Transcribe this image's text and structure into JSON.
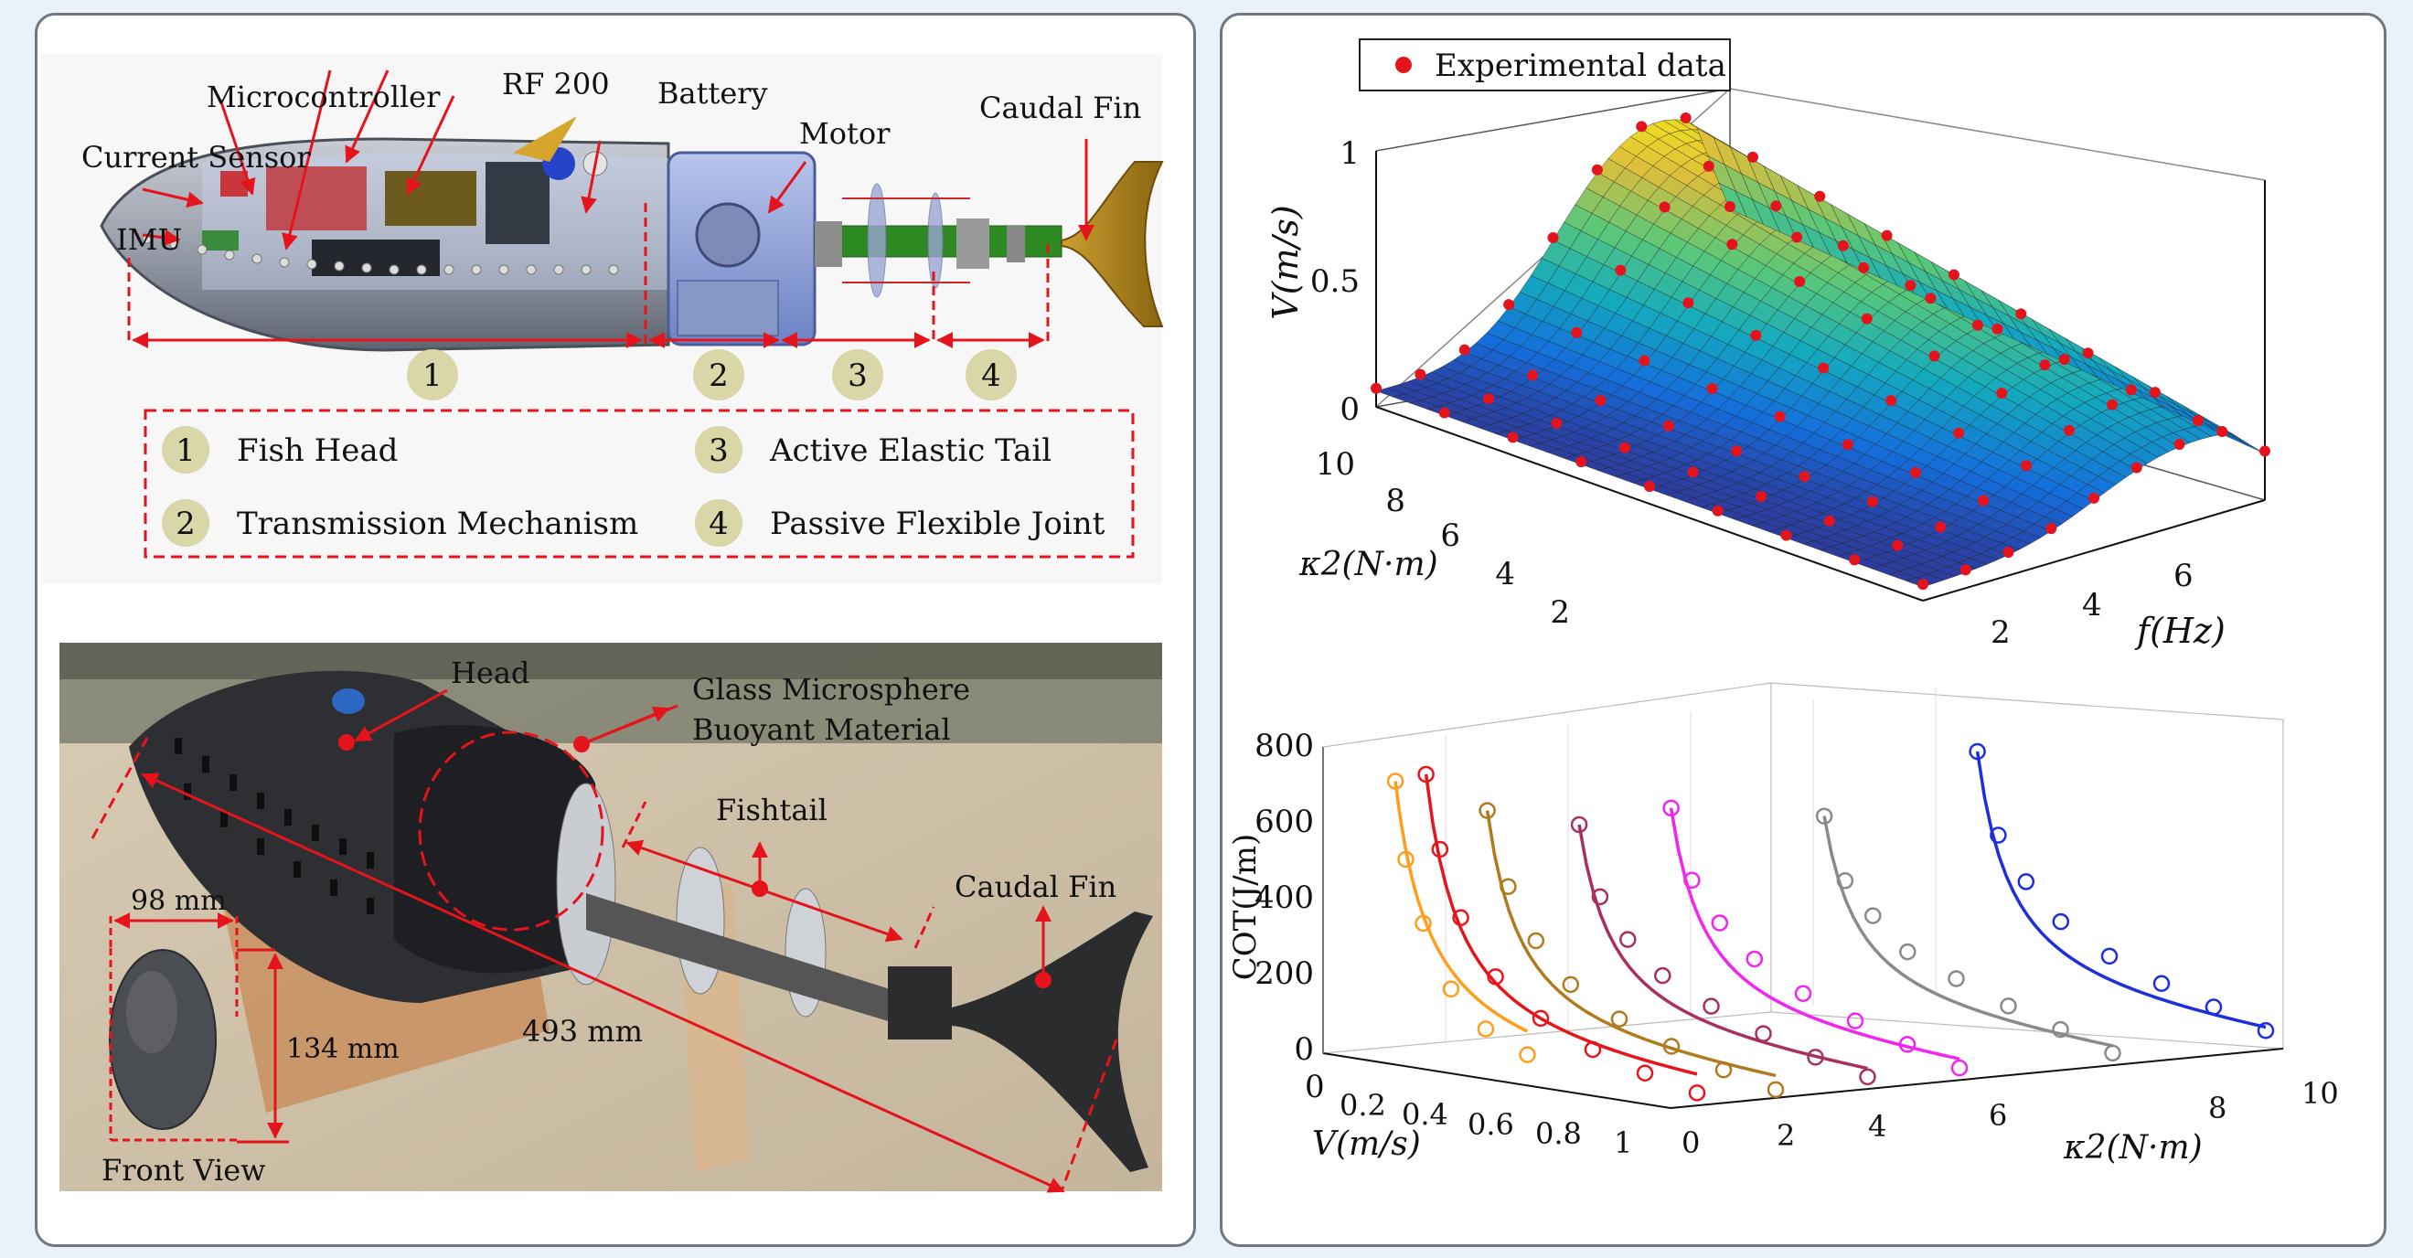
{
  "cad": {
    "labels": {
      "microcontroller": "Microcontroller",
      "rf200": "RF 200",
      "battery": "Battery",
      "motor": "Motor",
      "caudal_fin": "Caudal Fin",
      "current_sensor": "Current Sensor",
      "imu": "IMU"
    },
    "section_numbers": [
      "1",
      "2",
      "3",
      "4"
    ],
    "legend": [
      {
        "num": "1",
        "text": "Fish Head"
      },
      {
        "num": "2",
        "text": "Transmission Mechanism"
      },
      {
        "num": "3",
        "text": "Active Elastic Tail"
      },
      {
        "num": "4",
        "text": "Passive Flexible Joint"
      }
    ]
  },
  "photo": {
    "labels": {
      "head": "Head",
      "glass_line1": "Glass Microsphere",
      "glass_line2": "Buoyant Material",
      "fishtail": "Fishtail",
      "caudal_fin": "Caudal Fin",
      "width": "98 mm",
      "height": "134 mm",
      "length": "493 mm",
      "front_view": "Front View"
    }
  },
  "chart_data": [
    {
      "type": "surface",
      "legend": "Experimental data",
      "zlabel": "V(m/s)",
      "xlabel": "f(Hz)",
      "ylabel": "κ2(N·m)",
      "z_ticks": [
        "0",
        "0.5",
        "1"
      ],
      "x_ticks": [
        "2",
        "4",
        "6"
      ],
      "y_ticks": [
        "2",
        "4",
        "6",
        "8",
        "10"
      ],
      "zlim": [
        0,
        1
      ],
      "note_colormap": "parula"
    },
    {
      "type": "line",
      "ylabel": "COT(J/m)",
      "xlabel": "V(m/s)",
      "zlabel_axis": "κ2(N·m)",
      "y_ticks": [
        "0",
        "200",
        "400",
        "600",
        "800"
      ],
      "x_ticks": [
        "0",
        "0.2",
        "0.4",
        "0.6",
        "0.8",
        "1"
      ],
      "k_ticks": [
        "0",
        "2",
        "4",
        "6",
        "8",
        "10"
      ],
      "series": [
        {
          "k": 0.5,
          "color": "#ff9d1c",
          "v": [
            0.12,
            0.15,
            0.2,
            0.28,
            0.38,
            0.5
          ],
          "cot": [
            720,
            520,
            360,
            200,
            110,
            60
          ]
        },
        {
          "k": 1.0,
          "color": "#e8141c",
          "v": [
            0.12,
            0.16,
            0.22,
            0.32,
            0.45,
            0.6,
            0.75,
            0.9
          ],
          "cot": [
            730,
            540,
            370,
            230,
            140,
            80,
            40,
            10
          ]
        },
        {
          "k": 2.0,
          "color": "#b07a1e",
          "v": [
            0.12,
            0.18,
            0.26,
            0.36,
            0.5,
            0.65,
            0.8,
            0.95
          ],
          "cot": [
            620,
            430,
            300,
            200,
            130,
            80,
            40,
            10
          ]
        },
        {
          "k": 3.5,
          "color": "#a8305e",
          "v": [
            0.12,
            0.18,
            0.26,
            0.36,
            0.5,
            0.65,
            0.8,
            0.95
          ],
          "cot": [
            560,
            380,
            280,
            200,
            140,
            90,
            50,
            20
          ]
        },
        {
          "k": 5.0,
          "color": "#f026f0",
          "v": [
            0.12,
            0.18,
            0.26,
            0.36,
            0.5,
            0.65,
            0.8,
            0.95
          ],
          "cot": [
            580,
            400,
            300,
            220,
            150,
            100,
            60,
            20
          ]
        },
        {
          "k": 7.5,
          "color": "#8a8a8a",
          "v": [
            0.12,
            0.18,
            0.26,
            0.36,
            0.5,
            0.65,
            0.8,
            0.95
          ],
          "cot": [
            520,
            360,
            280,
            200,
            150,
            100,
            60,
            20
          ]
        },
        {
          "k": 10.0,
          "color": "#1c2ee0",
          "v": [
            0.12,
            0.18,
            0.26,
            0.36,
            0.5,
            0.65,
            0.8,
            0.95
          ],
          "cot": [
            650,
            440,
            330,
            240,
            170,
            120,
            80,
            40
          ]
        }
      ]
    }
  ]
}
